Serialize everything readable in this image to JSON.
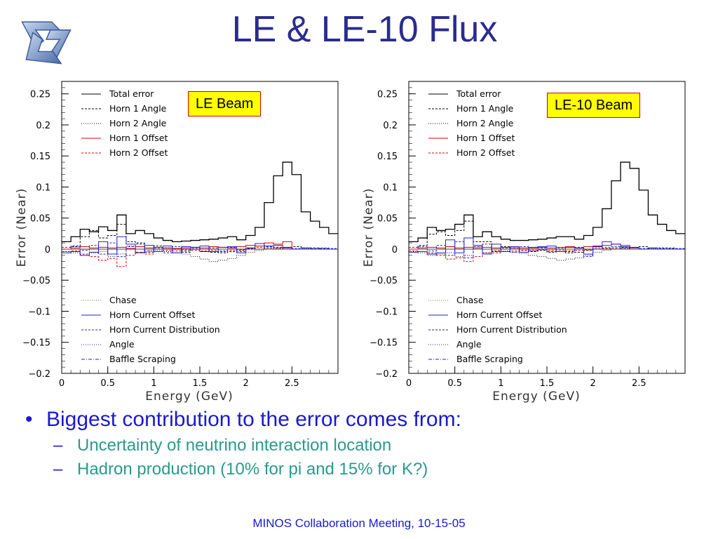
{
  "slide": {
    "title": "LE & LE-10 Flux",
    "footer": "MINOS Collaboration Meeting, 10-15-05",
    "bullet_main": "Biggest contribution to the error comes from:",
    "bullet_subs": [
      "Uncertainty of neutrino interaction location",
      "Hadron production (10% for pi and 15% for K?)"
    ],
    "bullet_marker": "•",
    "sub_marker": "–"
  },
  "colors": {
    "title": "#2b2b8f",
    "bullet": "#1a1acc",
    "sub_bullet": "#2a9a8a",
    "beam_box_fill": "#ffff00",
    "beam_box_border": "#cc0000"
  },
  "chart_data": [
    {
      "type": "line",
      "step": true,
      "annotation": "LE Beam",
      "xlabel": "Energy (GeV)",
      "ylabel": "Error (Near)",
      "xlim": [
        0,
        3
      ],
      "ylim": [
        -0.2,
        0.27
      ],
      "xticks": [
        "0",
        "0.5",
        "1",
        "1.5",
        "2",
        "2.5"
      ],
      "yticks": [
        "0.25",
        "0.2",
        "0.15",
        "0.1",
        "0.05",
        "0",
        "-0.05",
        "-0.1",
        "-0.15",
        "-0.2"
      ],
      "legend_top": [
        "Total error",
        "Horn 1 Angle",
        "Horn 2 Angle",
        "Horn 1 Offset",
        "Horn 2 Offset"
      ],
      "legend_bottom": [
        "Chase",
        "Horn Current Offset",
        "Horn Current Distribution",
        "Angle",
        "Baffle Scraping"
      ],
      "x": [
        0,
        0.1,
        0.2,
        0.3,
        0.4,
        0.5,
        0.6,
        0.7,
        0.8,
        0.9,
        1.0,
        1.1,
        1.2,
        1.3,
        1.4,
        1.5,
        1.6,
        1.7,
        1.8,
        1.9,
        2.0,
        2.1,
        2.2,
        2.3,
        2.4,
        2.5,
        2.6,
        2.7,
        2.8,
        2.9
      ],
      "series": [
        {
          "name": "Total error",
          "color": "#000000",
          "dash": "",
          "values": [
            0.012,
            0.02,
            0.032,
            0.028,
            0.036,
            0.03,
            0.055,
            0.025,
            0.03,
            0.025,
            0.018,
            0.014,
            0.012,
            0.013,
            0.014,
            0.015,
            0.016,
            0.018,
            0.02,
            0.015,
            0.022,
            0.035,
            0.075,
            0.118,
            0.14,
            0.12,
            0.06,
            0.045,
            0.035,
            0.025
          ]
        },
        {
          "name": "Horn 1 Angle",
          "color": "#000000",
          "dash": "3,2",
          "values": [
            0.0,
            0.005,
            0.02,
            0.03,
            0.018,
            0.022,
            0.04,
            0.012,
            0.01,
            -0.005,
            0.005,
            0.002,
            0.0,
            -0.005,
            0.0,
            -0.004,
            -0.005,
            -0.006,
            -0.004,
            -0.002,
            0.001,
            0.0,
            0.002,
            0.003,
            0.003,
            0.004,
            0.002,
            0.002,
            0.001,
            0.0
          ]
        },
        {
          "name": "Horn 2 Angle",
          "color": "#000000",
          "dash": "1,2",
          "values": [
            -0.004,
            -0.006,
            -0.01,
            -0.006,
            -0.004,
            -0.012,
            -0.008,
            0.005,
            -0.005,
            -0.003,
            -0.002,
            -0.004,
            -0.006,
            -0.008,
            -0.012,
            -0.016,
            -0.02,
            -0.018,
            -0.015,
            -0.01,
            -0.005,
            -0.002,
            0.0,
            0.001,
            0.0,
            0.0,
            0.001,
            0.0,
            0.0,
            0.0
          ]
        },
        {
          "name": "Horn 1 Offset",
          "color": "#dd0000",
          "dash": "",
          "values": [
            0.0,
            0.002,
            0.004,
            0.002,
            0.003,
            0.002,
            0.003,
            0.001,
            0.004,
            0.002,
            0.003,
            0.002,
            0.001,
            0.002,
            0.003,
            0.002,
            0.004,
            0.003,
            0.002,
            0.004,
            0.006,
            0.005,
            0.01,
            0.008,
            0.012,
            0.0,
            0.0,
            0.0,
            0.0,
            0.0
          ]
        },
        {
          "name": "Horn 2 Offset",
          "color": "#dd0000",
          "dash": "3,2",
          "values": [
            -0.004,
            -0.003,
            -0.008,
            -0.012,
            -0.018,
            -0.015,
            -0.028,
            -0.01,
            -0.005,
            -0.008,
            -0.004,
            -0.002,
            -0.003,
            -0.001,
            -0.002,
            -0.003,
            -0.002,
            -0.004,
            -0.002,
            -0.001,
            0.0,
            0.0,
            0.0,
            0.0,
            0.0,
            0.0,
            0.0,
            0.0,
            0.0,
            0.0
          ]
        },
        {
          "name": "Horn Current Offset",
          "color": "#2222cc",
          "dash": "",
          "values": [
            -0.006,
            -0.004,
            -0.01,
            -0.005,
            0.012,
            -0.008,
            0.02,
            0.008,
            -0.006,
            0.006,
            -0.004,
            0.005,
            -0.006,
            0.004,
            0.003,
            0.005,
            -0.004,
            0.003,
            0.004,
            -0.006,
            0.002,
            0.009,
            0.005,
            0.006,
            0.002,
            0.0,
            0.0,
            0.0,
            0.0,
            0.0
          ]
        },
        {
          "name": "Horn Current Distribution",
          "color": "#2222cc",
          "dash": "3,2",
          "values": [
            0.003,
            0.004,
            -0.002,
            0.006,
            -0.008,
            0.01,
            -0.012,
            0.004,
            0.008,
            -0.003,
            0.002,
            -0.006,
            0.004,
            -0.003,
            0.002,
            -0.004,
            0.002,
            -0.003,
            0.003,
            -0.004,
            0.002,
            0.003,
            0.004,
            0.002,
            0.003,
            0.001,
            0.002,
            0.001,
            0.002,
            0.001
          ]
        }
      ]
    },
    {
      "type": "line",
      "step": true,
      "annotation": "LE-10 Beam",
      "xlabel": "Energy (GeV)",
      "ylabel": "Error (Near)",
      "xlim": [
        0,
        3
      ],
      "ylim": [
        -0.2,
        0.27
      ],
      "xticks": [
        "0",
        "0.5",
        "1",
        "1.5",
        "2",
        "2.5"
      ],
      "yticks": [
        "0.25",
        "0.2",
        "0.15",
        "0.1",
        "0.05",
        "0",
        "-0.05",
        "-0.1",
        "-0.15",
        "-0.2"
      ],
      "legend_top": [
        "Total error",
        "Horn 1 Angle",
        "Horn 2 Angle",
        "Horn 1 Offset",
        "Horn 2 Offset"
      ],
      "legend_bottom": [
        "Chase",
        "Horn Current Offset",
        "Horn Current Distribution",
        "Angle",
        "Baffle Scraping"
      ],
      "x": [
        0,
        0.1,
        0.2,
        0.3,
        0.4,
        0.5,
        0.6,
        0.7,
        0.8,
        0.9,
        1.0,
        1.1,
        1.2,
        1.3,
        1.4,
        1.5,
        1.6,
        1.7,
        1.8,
        1.9,
        2.0,
        2.1,
        2.2,
        2.3,
        2.4,
        2.5,
        2.6,
        2.7,
        2.8,
        2.9
      ],
      "series": [
        {
          "name": "Total error",
          "color": "#000000",
          "dash": "",
          "values": [
            0.012,
            0.018,
            0.035,
            0.03,
            0.032,
            0.04,
            0.055,
            0.02,
            0.028,
            0.02,
            0.016,
            0.014,
            0.014,
            0.015,
            0.016,
            0.018,
            0.02,
            0.02,
            0.016,
            0.022,
            0.035,
            0.065,
            0.11,
            0.14,
            0.13,
            0.095,
            0.055,
            0.04,
            0.03,
            0.025
          ]
        },
        {
          "name": "Horn 1 Angle",
          "color": "#000000",
          "dash": "3,2",
          "values": [
            0.0,
            0.006,
            0.024,
            0.028,
            0.022,
            0.03,
            0.045,
            0.012,
            0.012,
            -0.003,
            0.004,
            0.002,
            -0.002,
            -0.004,
            -0.002,
            -0.005,
            -0.004,
            -0.006,
            -0.005,
            -0.002,
            0.0,
            0.001,
            0.002,
            0.003,
            0.003,
            0.004,
            0.002,
            0.002,
            0.001,
            0.0
          ]
        },
        {
          "name": "Horn 2 Angle",
          "color": "#000000",
          "dash": "1,2",
          "values": [
            -0.004,
            -0.006,
            -0.01,
            -0.008,
            -0.006,
            -0.012,
            -0.01,
            0.004,
            -0.006,
            -0.004,
            -0.003,
            -0.005,
            -0.007,
            -0.01,
            -0.012,
            -0.015,
            -0.018,
            -0.016,
            -0.014,
            -0.01,
            -0.005,
            -0.002,
            0.0,
            0.001,
            0.0,
            0.0,
            0.001,
            0.0,
            0.0,
            0.0
          ]
        },
        {
          "name": "Horn 1 Offset",
          "color": "#dd0000",
          "dash": "",
          "values": [
            0.0,
            0.002,
            0.003,
            0.002,
            0.004,
            0.002,
            0.003,
            0.002,
            0.003,
            0.002,
            0.003,
            0.002,
            0.002,
            0.002,
            0.003,
            0.002,
            0.003,
            0.004,
            0.002,
            0.004,
            0.005,
            0.006,
            0.008,
            0.006,
            0.0,
            0.0,
            0.0,
            0.0,
            0.0,
            0.0
          ]
        },
        {
          "name": "Horn 2 Offset",
          "color": "#dd0000",
          "dash": "3,2",
          "values": [
            -0.003,
            -0.004,
            -0.006,
            -0.01,
            -0.016,
            -0.014,
            -0.02,
            -0.012,
            -0.006,
            -0.006,
            -0.004,
            -0.003,
            -0.002,
            -0.002,
            -0.001,
            -0.002,
            -0.002,
            -0.003,
            -0.002,
            -0.001,
            0.0,
            0.0,
            0.0,
            0.0,
            0.0,
            0.0,
            0.0,
            0.0,
            0.0,
            0.0
          ]
        },
        {
          "name": "Horn Current Offset",
          "color": "#2222cc",
          "dash": "",
          "values": [
            -0.005,
            -0.004,
            -0.008,
            -0.006,
            0.015,
            -0.006,
            0.018,
            0.006,
            -0.008,
            0.008,
            -0.004,
            0.004,
            -0.005,
            0.003,
            0.004,
            0.005,
            -0.004,
            0.003,
            0.002,
            -0.008,
            0.004,
            0.012,
            0.008,
            0.004,
            0.002,
            0.0,
            0.0,
            0.0,
            0.0,
            0.0
          ]
        },
        {
          "name": "Horn Current Distribution",
          "color": "#2222cc",
          "dash": "3,2",
          "values": [
            0.003,
            0.004,
            -0.003,
            0.006,
            -0.01,
            0.012,
            -0.014,
            0.004,
            0.008,
            -0.004,
            0.002,
            -0.005,
            0.004,
            -0.003,
            0.002,
            -0.004,
            0.002,
            -0.004,
            0.003,
            -0.012,
            0.002,
            0.003,
            0.004,
            0.002,
            0.003,
            0.001,
            0.002,
            0.001,
            0.002,
            0.001
          ]
        }
      ]
    }
  ]
}
